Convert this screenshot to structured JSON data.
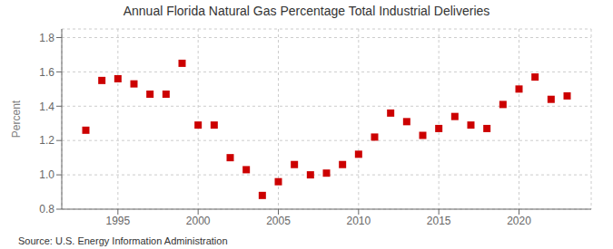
{
  "chart_data": {
    "type": "scatter",
    "title": "Annual Florida Natural Gas Percentage Total Industrial Deliveries",
    "y_label": "Percent",
    "annotations": [
      "Source: U.S. Energy Information Administration"
    ],
    "color": "#cc0000",
    "marker": "square",
    "grid": true,
    "xlim": [
      1991.5,
      2024.5
    ],
    "ylim": [
      0.8,
      1.85
    ],
    "xticks": [
      1995,
      2000,
      2005,
      2010,
      2015,
      2020
    ],
    "yticks": [
      0.8,
      {
        "value": 1.0,
        "label": "1.0"
      },
      1.2,
      1.4,
      1.6,
      1.8
    ],
    "x": [
      1993,
      1994,
      1995,
      1996,
      1997,
      1998,
      1999,
      2000,
      2001,
      2002,
      2003,
      2004,
      2005,
      2006,
      2007,
      2008,
      2009,
      2010,
      2011,
      2012,
      2013,
      2014,
      2015,
      2016,
      2017,
      2018,
      2019,
      2020,
      2021,
      2022,
      2023
    ],
    "values": [
      1.26,
      1.55,
      1.56,
      1.53,
      1.47,
      1.47,
      1.65,
      1.29,
      1.29,
      1.1,
      1.03,
      0.88,
      0.96,
      1.06,
      1.0,
      1.01,
      1.06,
      1.12,
      1.22,
      1.36,
      1.31,
      1.23,
      1.27,
      1.34,
      1.29,
      1.27,
      1.41,
      1.5,
      1.57,
      1.44,
      1.46
    ]
  }
}
